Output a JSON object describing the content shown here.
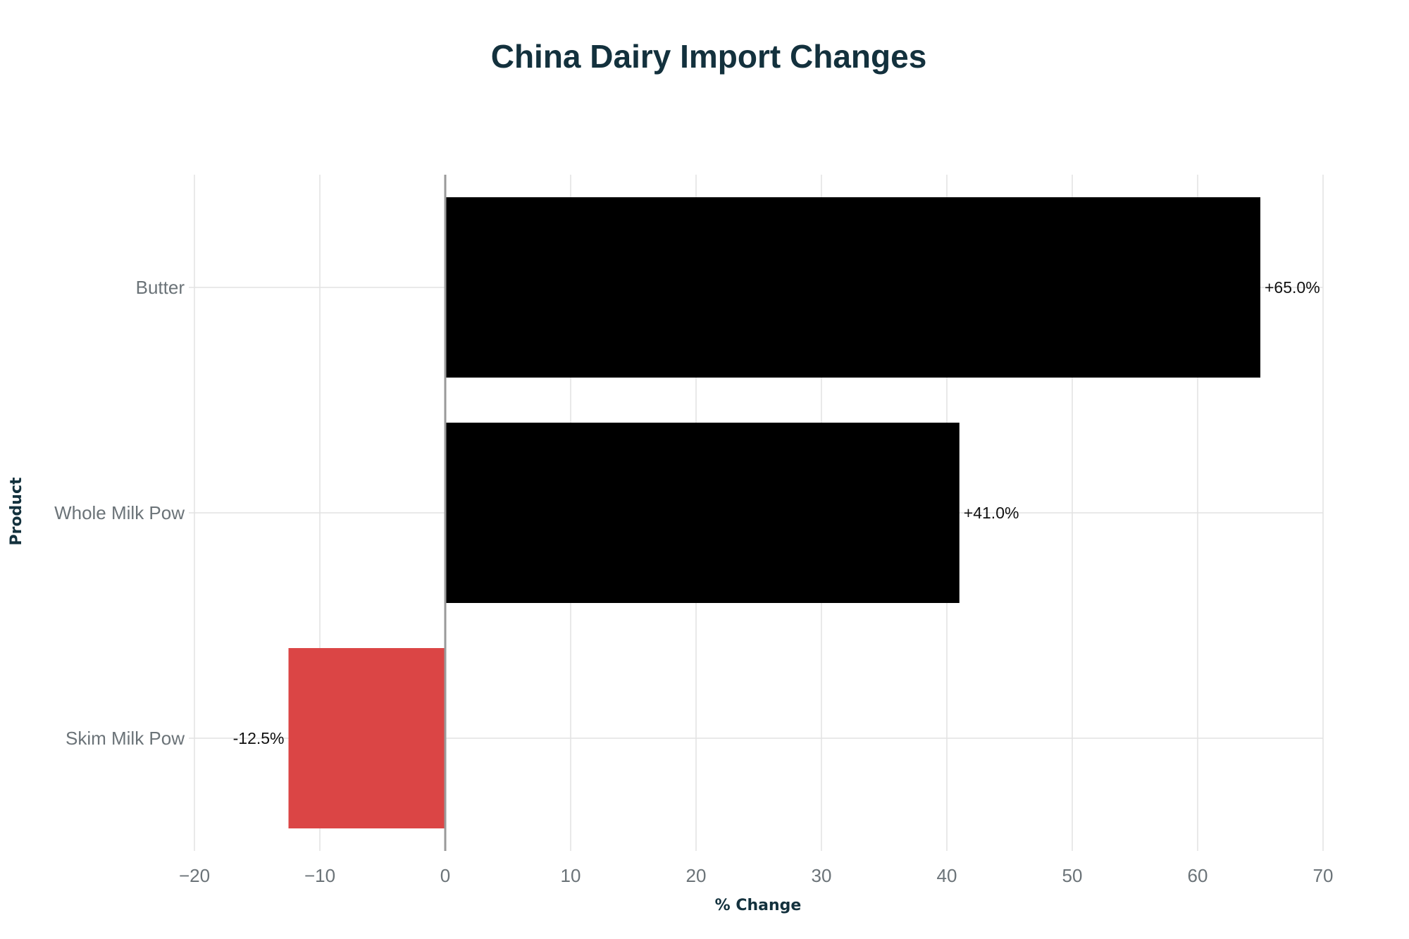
{
  "chart_data": {
    "type": "bar",
    "orientation": "horizontal",
    "title": "China Dairy Import Changes",
    "xlabel": "% Change",
    "ylabel": "Product",
    "categories": [
      "Butter",
      "Whole Milk Pow",
      "Skim Milk Pow"
    ],
    "values": [
      65.0,
      41.0,
      -12.5
    ],
    "data_labels": [
      "+65.0%",
      "+41.0%",
      "-12.5%"
    ],
    "xlim": [
      -20,
      70
    ],
    "xticks": [
      -20,
      -10,
      0,
      10,
      20,
      30,
      40,
      50,
      60,
      70
    ],
    "xtick_labels": [
      "−20",
      "−10",
      "0",
      "10",
      "20",
      "30",
      "40",
      "50",
      "60",
      "70"
    ],
    "grid": true,
    "legend": "none",
    "colors": {
      "positive": "#000000",
      "negative": "#db4545",
      "title": "#13313d",
      "grid": "#e2e2e2",
      "zero_line": "#9a9a9a",
      "tick_text": "#6b7378"
    }
  }
}
